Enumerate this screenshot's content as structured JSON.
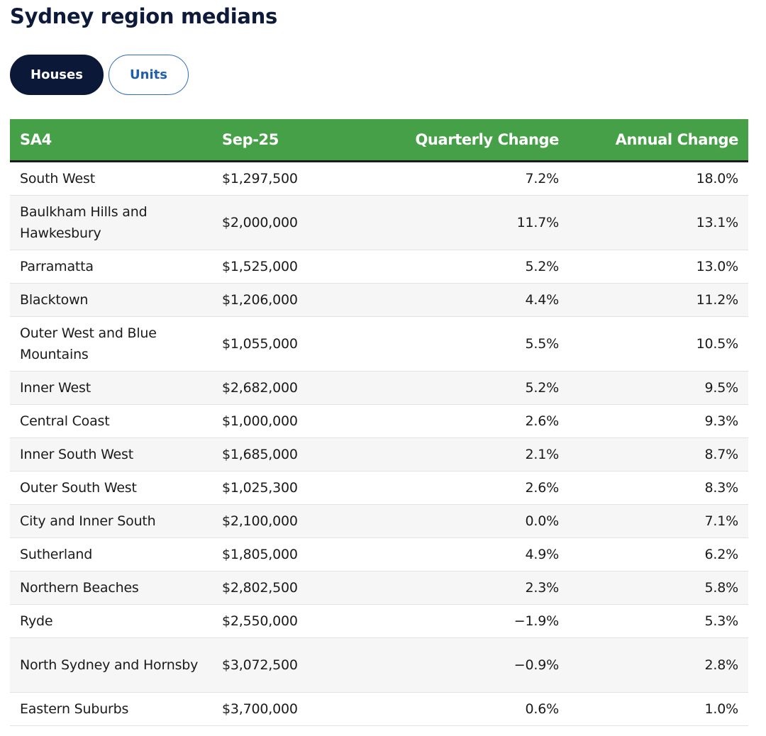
{
  "title": "Sydney region medians",
  "tabs": {
    "houses": "Houses",
    "units": "Units",
    "active": "Houses"
  },
  "colors": {
    "header_bg": "#45a047",
    "active_tab": "#0b1838",
    "inactive_tab_text": "#1f5fae",
    "title": "#0e1a3a"
  },
  "table": {
    "columns": [
      "SA4",
      "Sep-25",
      "Quarterly Change",
      "Annual Change"
    ],
    "rows": [
      [
        "South West",
        "$1,297,500",
        "7.2%",
        "18.0%"
      ],
      [
        "Baulkham Hills and Hawkesbury",
        "$2,000,000",
        "11.7%",
        "13.1%"
      ],
      [
        "Parramatta",
        "$1,525,000",
        "5.2%",
        "13.0%"
      ],
      [
        "Blacktown",
        "$1,206,000",
        "4.4%",
        "11.2%"
      ],
      [
        "Outer West and Blue Mountains",
        "$1,055,000",
        "5.5%",
        "10.5%"
      ],
      [
        "Inner West",
        "$2,682,000",
        "5.2%",
        "9.5%"
      ],
      [
        "Central Coast",
        "$1,000,000",
        "2.6%",
        "9.3%"
      ],
      [
        "Inner South West",
        "$1,685,000",
        "2.1%",
        "8.7%"
      ],
      [
        "Outer South West",
        "$1,025,300",
        "2.6%",
        "8.3%"
      ],
      [
        "City and Inner South",
        "$2,100,000",
        "0.0%",
        "7.1%"
      ],
      [
        "Sutherland",
        "$1,805,000",
        "4.9%",
        "6.2%"
      ],
      [
        "Northern Beaches",
        "$2,802,500",
        "2.3%",
        "5.8%"
      ],
      [
        "Ryde",
        "$2,550,000",
        "−1.9%",
        "5.3%"
      ],
      [
        "North Sydney and Hornsby",
        "$3,072,500",
        "−0.9%",
        "2.8%"
      ],
      [
        "Eastern Suburbs",
        "$3,700,000",
        "0.6%",
        "1.0%"
      ]
    ]
  }
}
